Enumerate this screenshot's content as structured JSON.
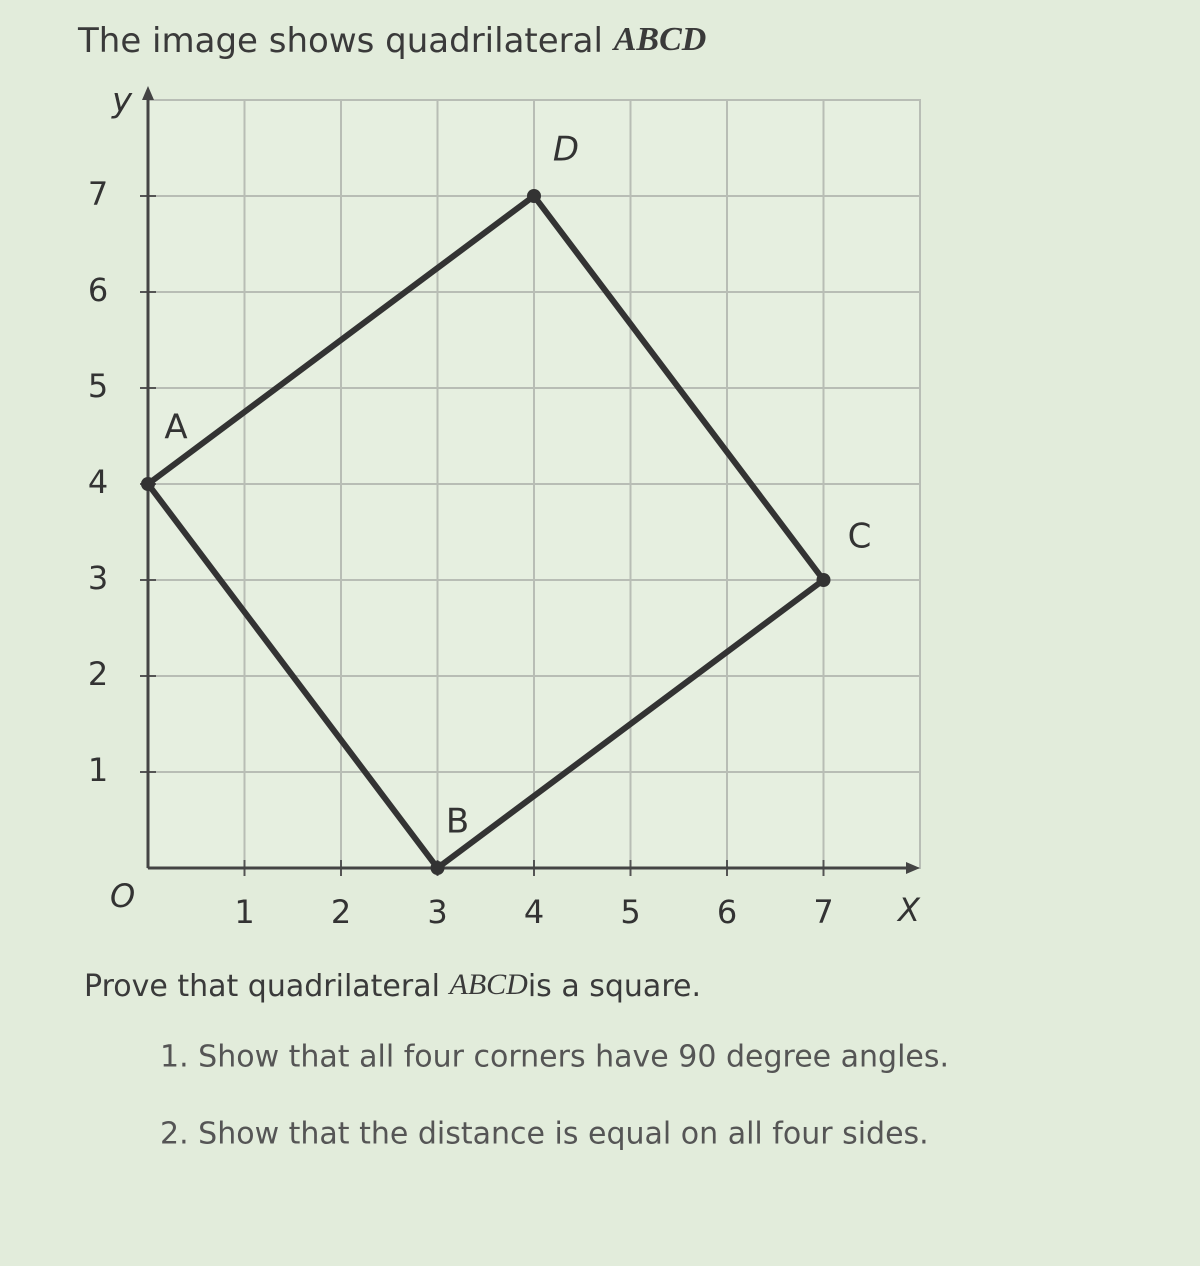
{
  "header": {
    "text": "The image shows quadrilateral",
    "math": "ABCD"
  },
  "graph": {
    "x_label": "X",
    "y_label": "y",
    "origin_label": "O",
    "xlim": [
      0,
      8
    ],
    "ylim": [
      0,
      8
    ],
    "xticks": [
      1,
      2,
      3,
      4,
      5,
      6,
      7
    ],
    "yticks": [
      1,
      2,
      3,
      4,
      5,
      6,
      7
    ],
    "points": [
      {
        "label": "A",
        "x": 0,
        "y": 4
      },
      {
        "label": "B",
        "x": 3,
        "y": 0
      },
      {
        "label": "C",
        "x": 7,
        "y": 3
      },
      {
        "label": "D",
        "x": 4,
        "y": 7
      }
    ]
  },
  "prompt": {
    "text": "Prove that quadrilateral",
    "math": "ABCD",
    "suffix": "is a square."
  },
  "steps": [
    "1. Show that all four corners have 90 degree angles.",
    "2. Show that the distance is equal on all four sides."
  ]
}
